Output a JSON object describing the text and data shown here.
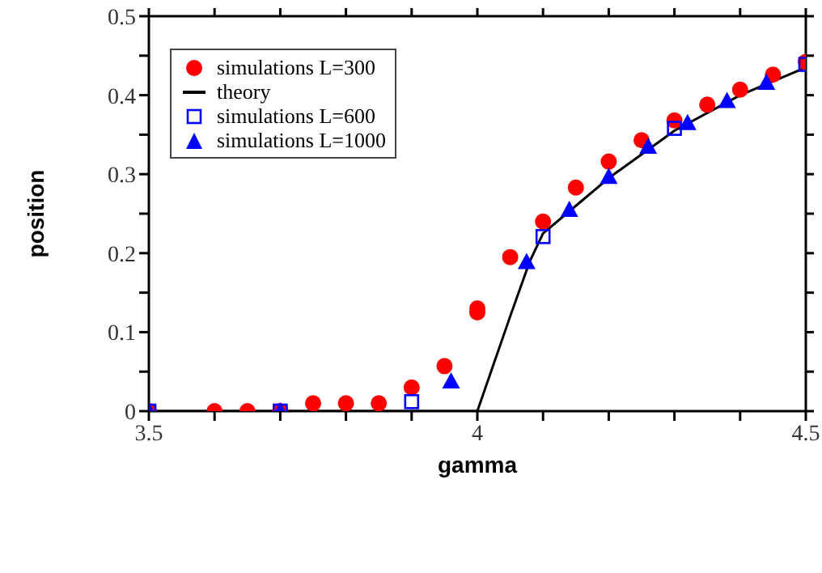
{
  "chart_data": {
    "type": "scatter",
    "xlabel": "gamma",
    "ylabel": "position",
    "xlim": [
      3.5,
      4.5
    ],
    "ylim": [
      0,
      0.5
    ],
    "xticks": [
      3.5,
      {
        "value": 3.6,
        "label": null
      },
      {
        "value": 3.7,
        "label": null
      },
      {
        "value": 3.8,
        "label": null
      },
      {
        "value": 3.9,
        "label": null
      },
      4,
      {
        "value": 4.1,
        "label": null
      },
      {
        "value": 4.2,
        "label": null
      },
      {
        "value": 4.3,
        "label": null
      },
      {
        "value": 4.4,
        "label": null
      },
      4.5
    ],
    "yticks": [
      0,
      {
        "value": 0.05,
        "label": null
      },
      0.1,
      {
        "value": 0.15,
        "label": null
      },
      0.2,
      {
        "value": 0.25,
        "label": null
      },
      0.3,
      {
        "value": 0.35,
        "label": null
      },
      0.4,
      {
        "value": 0.45,
        "label": null
      },
      0.5
    ],
    "legend": "top left",
    "series": [
      {
        "name": "simulations L=300",
        "marker": "circle",
        "color": "#ff0000",
        "x": [
          3.5,
          3.6,
          3.65,
          3.7,
          3.75,
          3.8,
          3.85,
          3.9,
          3.95,
          4.0,
          4.0,
          4.05,
          4.1,
          4.15,
          4.2,
          4.25,
          4.3,
          4.35,
          4.4,
          4.45,
          4.5
        ],
        "values": [
          0,
          0,
          0,
          0,
          0.01,
          0.01,
          0.01,
          0.03,
          0.057,
          0.13,
          0.125,
          0.195,
          0.24,
          0.283,
          0.316,
          0.343,
          0.368,
          0.388,
          0.407,
          0.426,
          0.442
        ]
      },
      {
        "name": "theory",
        "type": "line",
        "marker": "none",
        "line_style": "solid",
        "color": "#000000",
        "x": [
          3.5,
          4.0,
          4.05,
          4.08,
          4.1,
          4.15,
          4.2,
          4.3,
          4.4,
          4.5
        ],
        "values": [
          0,
          0,
          0.12,
          0.19,
          0.225,
          0.26,
          0.295,
          0.355,
          0.4,
          0.435
        ]
      },
      {
        "name": "simulations L=600",
        "marker": "square",
        "color": "#0000ff",
        "x": [
          3.5,
          3.7,
          3.9,
          4.1,
          4.3,
          4.5
        ],
        "values": [
          0,
          0,
          0.012,
          0.221,
          0.358,
          0.439
        ]
      },
      {
        "name": "simulations L=1000",
        "marker": "triangle",
        "color": "#0000ff",
        "x": [
          3.5,
          3.7,
          3.96,
          4.075,
          4.14,
          4.2,
          4.26,
          4.32,
          4.38,
          4.44
        ],
        "values": [
          0,
          0,
          0.038,
          0.189,
          0.255,
          0.297,
          0.335,
          0.365,
          0.393,
          0.416
        ]
      }
    ]
  }
}
